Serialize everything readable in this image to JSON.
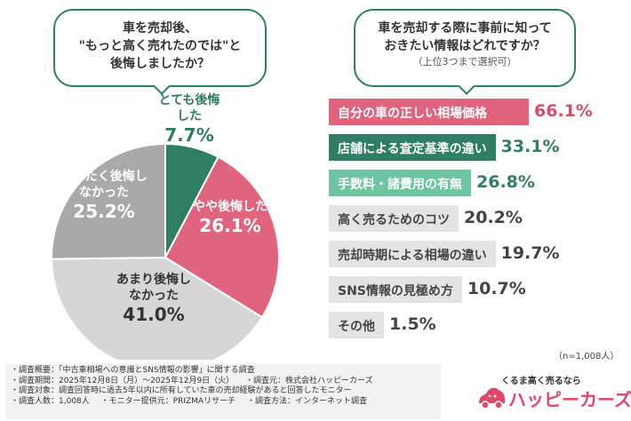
{
  "left_question": {
    "lines": [
      "車を売却後、",
      "\"もっと高く売れたのでは\"と",
      "後悔しましたか？"
    ]
  },
  "right_question": {
    "lines": [
      "車を売却する際に事前に知って",
      "おきたい情報はどれですか？"
    ],
    "note": "（上位3つまで選択可）"
  },
  "chart_data": [
    {
      "type": "pie",
      "start": "12 o'clock, clockwise",
      "slices": [
        {
          "label": "とても後悔した",
          "value": 7.7,
          "display": "7.7%",
          "color": "#2f7d62"
        },
        {
          "label": "やや後悔した",
          "value": 26.1,
          "display": "26.1%",
          "color": "#e0647e"
        },
        {
          "label": "あまり後悔しなかった",
          "value": 41.0,
          "display": "41.0%",
          "color": "#d6d6d6"
        },
        {
          "label": "まったく後悔しなかった",
          "value": 25.2,
          "display": "25.2%",
          "color": "#a9a9a9"
        }
      ]
    },
    {
      "type": "bar",
      "orientation": "horizontal",
      "xlim": [
        0,
        100
      ],
      "items": [
        {
          "label": "自分の車の正しい相場価格",
          "value": 66.1,
          "display": "66.1%",
          "color": "#e0647e",
          "text_color": "#ffffff",
          "value_color": "#d94c6a"
        },
        {
          "label": "店舗による査定基準の違い",
          "value": 33.1,
          "display": "33.1%",
          "color": "#2f7d62",
          "text_color": "#ffffff",
          "value_color": "#2f7d62"
        },
        {
          "label": "手数料・諸費用の有無",
          "value": 26.8,
          "display": "26.8%",
          "color": "#6cc4a1",
          "text_color": "#ffffff",
          "value_color": "#2f7d62"
        },
        {
          "label": "高く売るためのコツ",
          "value": 20.2,
          "display": "20.2%",
          "color": "#e4e4e4",
          "text_color": "#444444",
          "value_color": "#444444"
        },
        {
          "label": "売却時期による相場の違い",
          "value": 19.7,
          "display": "19.7%",
          "color": "#e4e4e4",
          "text_color": "#444444",
          "value_color": "#444444"
        },
        {
          "label": "SNS情報の見極め方",
          "value": 10.7,
          "display": "10.7%",
          "color": "#e4e4e4",
          "text_color": "#444444",
          "value_color": "#444444"
        },
        {
          "label": "その他",
          "value": 1.5,
          "display": "1.5%",
          "color": "#e4e4e4",
          "text_color": "#444444",
          "value_color": "#444444"
        }
      ]
    }
  ],
  "n_note": "（n=1,008人）",
  "survey": {
    "rows": [
      [
        "・調査概要：「中古車相場への意識とSNS情報の影響」に関する調査"
      ],
      [
        "・調査期間：2025年12月8日（月）～2025年12月9日（火）",
        "・調査元：株式会社ハッピーカーズ"
      ],
      [
        "・調査対象：調査回答時に過去5年以内に所有していた車の売却経験があると回答したモニター"
      ],
      [
        "・調査人数：1,008人",
        "・モニター提供元：PRIZMAリサーチ",
        "・調査方法：インターネット調査"
      ]
    ]
  },
  "logo": {
    "tagline": "くるま高く売るなら",
    "name": "ハッピーカーズ",
    "color": "#e0486a"
  }
}
